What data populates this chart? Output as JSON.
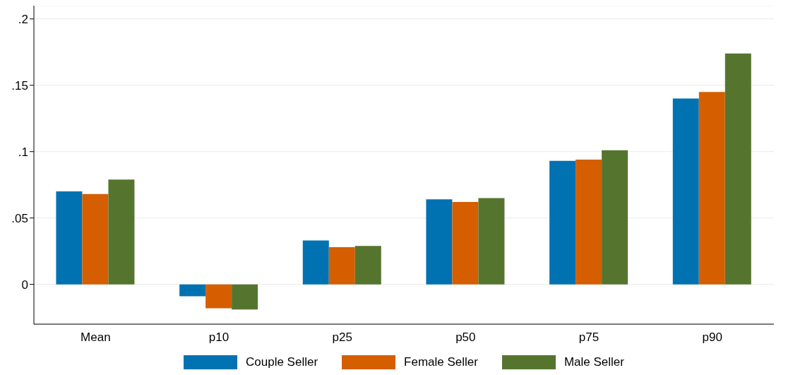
{
  "chart_data": {
    "type": "bar",
    "categories": [
      "Mean",
      "p10",
      "p25",
      "p50",
      "p75",
      "p90"
    ],
    "series": [
      {
        "name": "Couple Seller",
        "color": "#0072b2",
        "values": [
          0.07,
          -0.009,
          0.033,
          0.064,
          0.093,
          0.14
        ]
      },
      {
        "name": "Female Seller",
        "color": "#d55e00",
        "values": [
          0.068,
          -0.018,
          0.028,
          0.062,
          0.094,
          0.145
        ]
      },
      {
        "name": "Male Seller",
        "color": "#55752f",
        "values": [
          0.079,
          -0.019,
          0.029,
          0.065,
          0.101,
          0.174
        ]
      }
    ],
    "ylim": [
      -0.03,
      0.21
    ],
    "yticks": [
      {
        "value": 0,
        "label": "0"
      },
      {
        "value": 0.05,
        "label": ".05"
      },
      {
        "value": 0.1,
        "label": ".1"
      },
      {
        "value": 0.15,
        "label": ".15"
      },
      {
        "value": 0.2,
        "label": ".2"
      }
    ],
    "grid": "y",
    "legend": "bottom"
  }
}
